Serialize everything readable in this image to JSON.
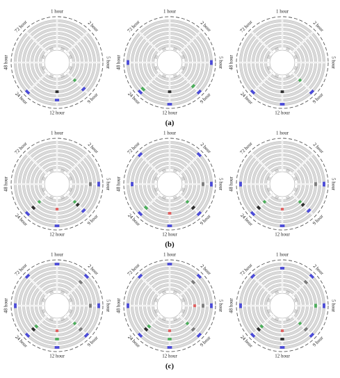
{
  "hour_labels": [
    "1 hour",
    "2 hour",
    "5 hour",
    "9 hour",
    "12 hour",
    "24 hour",
    "48 hour",
    "72 hour"
  ],
  "row_captions": [
    "(a)",
    "(b)",
    "(c)"
  ],
  "colors": {
    "track": "#d9d9d9",
    "track_stroke": "#b3b3b3",
    "outline": "#555555",
    "spoke": "#c8c8c8",
    "blue": "#3a3ad6",
    "green": "#3aa64a",
    "black": "#1a1a1a",
    "red": "#e05050",
    "gray": "#6e6e6e"
  },
  "panels": [
    {
      "row": 0,
      "col": 0,
      "marks": [
        {
          "sector": 5,
          "ring": 6,
          "color": "blue"
        },
        {
          "sector": 4,
          "ring": 5,
          "color": "blue"
        },
        {
          "sector": 4,
          "ring": 3,
          "color": "black"
        },
        {
          "sector": 3,
          "ring": 5,
          "color": "blue"
        },
        {
          "sector": 3,
          "ring": 2,
          "color": "green"
        }
      ]
    },
    {
      "row": 0,
      "col": 1,
      "marks": [
        {
          "sector": 6,
          "ring": 6,
          "color": "blue"
        },
        {
          "sector": 5,
          "ring": 6,
          "color": "blue"
        },
        {
          "sector": 5,
          "ring": 5,
          "color": "green"
        },
        {
          "sector": 4,
          "ring": 6,
          "color": "blue"
        },
        {
          "sector": 4,
          "ring": 3,
          "color": "black"
        },
        {
          "sector": 3,
          "ring": 4,
          "color": "green"
        },
        {
          "sector": 3,
          "ring": 6,
          "color": "blue"
        },
        {
          "sector": 2,
          "ring": 6,
          "color": "blue"
        }
      ]
    },
    {
      "row": 0,
      "col": 2,
      "marks": [
        {
          "sector": 5,
          "ring": 6,
          "color": "blue"
        },
        {
          "sector": 4,
          "ring": 6,
          "color": "blue"
        },
        {
          "sector": 4,
          "ring": 3,
          "color": "black"
        },
        {
          "sector": 3,
          "ring": 6,
          "color": "blue"
        },
        {
          "sector": 3,
          "ring": 2,
          "color": "green"
        }
      ]
    },
    {
      "row": 1,
      "col": 0,
      "marks": [
        {
          "sector": 5,
          "ring": 6,
          "color": "blue"
        },
        {
          "sector": 5,
          "ring": 4,
          "color": "black"
        },
        {
          "sector": 5,
          "ring": 2,
          "color": "green"
        },
        {
          "sector": 4,
          "ring": 6,
          "color": "blue"
        },
        {
          "sector": 4,
          "ring": 2,
          "color": "red"
        },
        {
          "sector": 3,
          "ring": 5,
          "color": "blue"
        },
        {
          "sector": 3,
          "ring": 3,
          "color": "black"
        },
        {
          "sector": 3,
          "ring": 2,
          "color": "green"
        },
        {
          "sector": 2,
          "ring": 6,
          "color": "blue"
        },
        {
          "sector": 2,
          "ring": 4,
          "color": "gray"
        }
      ]
    },
    {
      "row": 1,
      "col": 1,
      "marks": [
        {
          "sector": 7,
          "ring": 6,
          "color": "blue"
        },
        {
          "sector": 6,
          "ring": 5,
          "color": "blue"
        },
        {
          "sector": 5,
          "ring": 6,
          "color": "blue"
        },
        {
          "sector": 5,
          "ring": 4,
          "color": "green"
        },
        {
          "sector": 4,
          "ring": 6,
          "color": "blue"
        },
        {
          "sector": 4,
          "ring": 3,
          "color": "red"
        },
        {
          "sector": 3,
          "ring": 6,
          "color": "blue"
        },
        {
          "sector": 3,
          "ring": 4,
          "color": "black"
        },
        {
          "sector": 3,
          "ring": 2,
          "color": "green"
        },
        {
          "sector": 2,
          "ring": 6,
          "color": "blue"
        },
        {
          "sector": 2,
          "ring": 4,
          "color": "gray"
        },
        {
          "sector": 1,
          "ring": 6,
          "color": "blue"
        }
      ]
    },
    {
      "row": 1,
      "col": 2,
      "marks": [
        {
          "sector": 6,
          "ring": 6,
          "color": "blue"
        },
        {
          "sector": 5,
          "ring": 6,
          "color": "blue"
        },
        {
          "sector": 5,
          "ring": 4,
          "color": "black"
        },
        {
          "sector": 5,
          "ring": 2,
          "color": "green"
        },
        {
          "sector": 4,
          "ring": 6,
          "color": "blue"
        },
        {
          "sector": 4,
          "ring": 2,
          "color": "red"
        },
        {
          "sector": 3,
          "ring": 5,
          "color": "blue"
        },
        {
          "sector": 3,
          "ring": 3,
          "color": "black"
        },
        {
          "sector": 3,
          "ring": 2,
          "color": "green"
        },
        {
          "sector": 2,
          "ring": 6,
          "color": "blue"
        },
        {
          "sector": 2,
          "ring": 4,
          "color": "gray"
        }
      ]
    },
    {
      "row": 2,
      "col": 0,
      "marks": [
        {
          "sector": 7,
          "ring": 6,
          "color": "blue"
        },
        {
          "sector": 6,
          "ring": 6,
          "color": "blue"
        },
        {
          "sector": 5,
          "ring": 6,
          "color": "blue"
        },
        {
          "sector": 5,
          "ring": 4,
          "color": "black"
        },
        {
          "sector": 5,
          "ring": 3,
          "color": "green"
        },
        {
          "sector": 4,
          "ring": 6,
          "color": "blue"
        },
        {
          "sector": 4,
          "ring": 4,
          "color": "green"
        },
        {
          "sector": 4,
          "ring": 2,
          "color": "red"
        },
        {
          "sector": 3,
          "ring": 6,
          "color": "blue"
        },
        {
          "sector": 3,
          "ring": 4,
          "color": "gray"
        },
        {
          "sector": 3,
          "ring": 2,
          "color": "green"
        },
        {
          "sector": 2,
          "ring": 6,
          "color": "blue"
        },
        {
          "sector": 2,
          "ring": 4,
          "color": "gray"
        },
        {
          "sector": 1,
          "ring": 6,
          "color": "blue"
        },
        {
          "sector": 1,
          "ring": 4,
          "color": "gray"
        },
        {
          "sector": 0,
          "ring": 6,
          "color": "blue"
        }
      ]
    },
    {
      "row": 2,
      "col": 1,
      "marks": [
        {
          "sector": 7,
          "ring": 6,
          "color": "blue"
        },
        {
          "sector": 6,
          "ring": 6,
          "color": "blue"
        },
        {
          "sector": 5,
          "ring": 6,
          "color": "blue"
        },
        {
          "sector": 5,
          "ring": 4,
          "color": "black"
        },
        {
          "sector": 5,
          "ring": 3,
          "color": "green"
        },
        {
          "sector": 4,
          "ring": 6,
          "color": "blue"
        },
        {
          "sector": 4,
          "ring": 4,
          "color": "green"
        },
        {
          "sector": 4,
          "ring": 2,
          "color": "red"
        },
        {
          "sector": 3,
          "ring": 6,
          "color": "blue"
        },
        {
          "sector": 3,
          "ring": 4,
          "color": "gray"
        },
        {
          "sector": 3,
          "ring": 2,
          "color": "green"
        },
        {
          "sector": 2,
          "ring": 6,
          "color": "blue"
        },
        {
          "sector": 2,
          "ring": 4,
          "color": "gray"
        },
        {
          "sector": 2,
          "ring": 2,
          "color": "red"
        },
        {
          "sector": 1,
          "ring": 6,
          "color": "blue"
        },
        {
          "sector": 1,
          "ring": 4,
          "color": "gray"
        },
        {
          "sector": 0,
          "ring": 6,
          "color": "blue"
        }
      ]
    },
    {
      "row": 2,
      "col": 2,
      "marks": [
        {
          "sector": 7,
          "ring": 6,
          "color": "blue"
        },
        {
          "sector": 6,
          "ring": 6,
          "color": "blue"
        },
        {
          "sector": 5,
          "ring": 6,
          "color": "blue"
        },
        {
          "sector": 5,
          "ring": 4,
          "color": "black"
        },
        {
          "sector": 5,
          "ring": 3,
          "color": "green"
        },
        {
          "sector": 4,
          "ring": 6,
          "color": "blue"
        },
        {
          "sector": 4,
          "ring": 4,
          "color": "black"
        },
        {
          "sector": 4,
          "ring": 2,
          "color": "red"
        },
        {
          "sector": 3,
          "ring": 6,
          "color": "blue"
        },
        {
          "sector": 3,
          "ring": 4,
          "color": "gray"
        },
        {
          "sector": 3,
          "ring": 2,
          "color": "green"
        },
        {
          "sector": 2,
          "ring": 6,
          "color": "blue"
        },
        {
          "sector": 2,
          "ring": 4,
          "color": "green"
        },
        {
          "sector": 1,
          "ring": 6,
          "color": "blue"
        },
        {
          "sector": 1,
          "ring": 4,
          "color": "gray"
        },
        {
          "sector": 0,
          "ring": 5,
          "color": "blue"
        }
      ]
    }
  ]
}
